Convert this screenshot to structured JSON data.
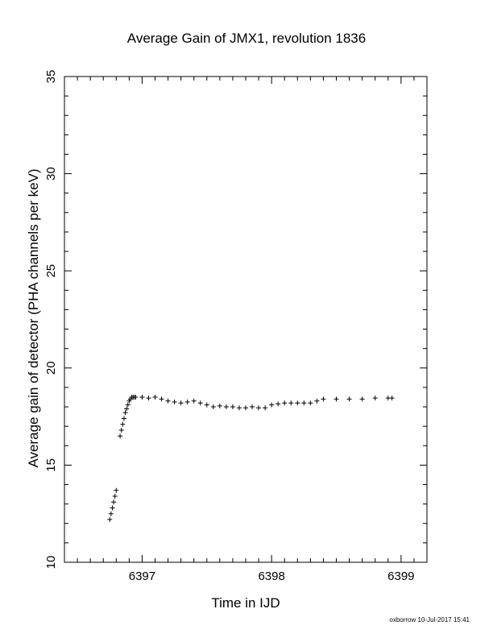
{
  "chart_data": {
    "type": "scatter",
    "title": "Average Gain of JMX1, revolution 1836",
    "xlabel": "Time in IJD",
    "ylabel": "Average gain of detector (PHA channels per keV)",
    "xlim": [
      6396.4,
      6399.2
    ],
    "ylim": [
      10,
      35
    ],
    "xticks": [
      6397,
      6398,
      6399
    ],
    "xtick_labels": [
      "6397",
      "6398",
      "6399"
    ],
    "yticks": [
      10,
      15,
      20,
      25,
      30,
      35
    ],
    "ytick_labels": [
      "10",
      "15",
      "20",
      "25",
      "30",
      "35"
    ],
    "marker": "plus",
    "grid": false,
    "legend": "none",
    "series": [
      {
        "x": [
          6396.75,
          6396.76,
          6396.77,
          6396.78,
          6396.79,
          6396.8,
          6396.83,
          6396.84,
          6396.85,
          6396.86,
          6396.87,
          6396.88,
          6396.89,
          6396.9,
          6396.91,
          6396.92,
          6396.93,
          6396.94,
          6396.95,
          6397.0,
          6397.05,
          6397.1,
          6397.15,
          6397.2,
          6397.25,
          6397.3,
          6397.35,
          6397.4,
          6397.45,
          6397.5,
          6397.55,
          6397.6,
          6397.65,
          6397.7,
          6397.75,
          6397.8,
          6397.85,
          6397.9,
          6397.95,
          6398.0,
          6398.05,
          6398.1,
          6398.15,
          6398.2,
          6398.25,
          6398.3,
          6398.35,
          6398.4,
          6398.5,
          6398.6,
          6398.7,
          6398.8,
          6398.9,
          6398.93
        ],
        "y": [
          12.2,
          12.5,
          12.8,
          13.1,
          13.4,
          13.7,
          16.5,
          16.8,
          17.1,
          17.4,
          17.7,
          17.9,
          18.1,
          18.3,
          18.4,
          18.5,
          18.5,
          18.5,
          18.5,
          18.5,
          18.45,
          18.5,
          18.4,
          18.3,
          18.25,
          18.2,
          18.25,
          18.3,
          18.2,
          18.1,
          18.0,
          18.05,
          18.0,
          18.0,
          17.95,
          17.95,
          18.0,
          17.95,
          17.95,
          18.1,
          18.15,
          18.2,
          18.2,
          18.2,
          18.2,
          18.2,
          18.3,
          18.4,
          18.4,
          18.4,
          18.4,
          18.45,
          18.45,
          18.45
        ]
      }
    ]
  },
  "footer": {
    "timestamp": "oxborrow 10-Jul-2017 15:41"
  }
}
